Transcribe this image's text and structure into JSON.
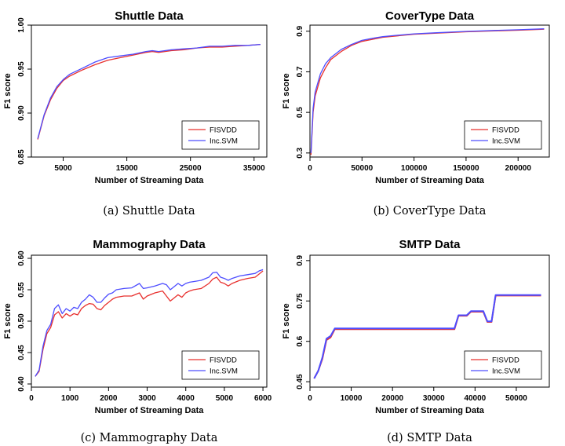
{
  "chart_data": [
    {
      "type": "line",
      "title": "Shuttle Data",
      "caption": "(a) Shuttle Data",
      "xlabel": "Number of Streaming Data",
      "ylabel": "F1 score",
      "xlim": [
        0,
        37000
      ],
      "ylim": [
        0.85,
        1.0
      ],
      "xticks": [
        5000,
        15000,
        25000,
        35000
      ],
      "yticks": [
        0.85,
        0.9,
        0.95,
        1.0
      ],
      "ytick_labels": [
        "0.85",
        "0.90",
        "0.95",
        "1.00"
      ],
      "legend": "bottom-right",
      "series": [
        {
          "name": "FISVDD",
          "color": "#e8302e",
          "x": [
            1000,
            2000,
            3000,
            4000,
            5000,
            6000,
            8000,
            10000,
            12000,
            14000,
            16000,
            18000,
            19000,
            20000,
            22000,
            24000,
            26000,
            28000,
            30000,
            32000,
            34000,
            36000
          ],
          "y": [
            0.87,
            0.897,
            0.915,
            0.928,
            0.937,
            0.942,
            0.949,
            0.955,
            0.96,
            0.963,
            0.966,
            0.969,
            0.97,
            0.969,
            0.971,
            0.972,
            0.974,
            0.975,
            0.975,
            0.976,
            0.977,
            0.978
          ]
        },
        {
          "name": "Inc.SVM",
          "color": "#4d4dff",
          "x": [
            1000,
            2000,
            3000,
            4000,
            5000,
            6000,
            8000,
            10000,
            12000,
            14000,
            16000,
            18000,
            19000,
            20000,
            22000,
            24000,
            26000,
            28000,
            30000,
            32000,
            34000,
            36000
          ],
          "y": [
            0.871,
            0.898,
            0.917,
            0.93,
            0.938,
            0.944,
            0.951,
            0.958,
            0.963,
            0.965,
            0.967,
            0.97,
            0.971,
            0.97,
            0.972,
            0.973,
            0.974,
            0.976,
            0.976,
            0.977,
            0.977,
            0.978
          ]
        }
      ]
    },
    {
      "type": "line",
      "title": "CoverType Data",
      "caption": "(b) CoverType Data",
      "xlabel": "Number of Streaming Data",
      "ylabel": "F1 score",
      "xlim": [
        0,
        230000
      ],
      "ylim": [
        0.28,
        0.93
      ],
      "xticks": [
        0,
        50000,
        100000,
        150000,
        200000
      ],
      "yticks": [
        0.3,
        0.5,
        0.7,
        0.9
      ],
      "ytick_labels": [
        "0.3",
        "0.5",
        "0.7",
        "0.9"
      ],
      "legend": "bottom-right",
      "series": [
        {
          "name": "FISVDD",
          "color": "#e8302e",
          "x": [
            1000,
            3000,
            5000,
            10000,
            15000,
            20000,
            30000,
            40000,
            50000,
            60000,
            70000,
            80000,
            100000,
            120000,
            150000,
            180000,
            200000,
            225000
          ],
          "y": [
            0.29,
            0.5,
            0.58,
            0.67,
            0.72,
            0.76,
            0.8,
            0.83,
            0.85,
            0.86,
            0.87,
            0.875,
            0.885,
            0.89,
            0.897,
            0.902,
            0.905,
            0.91
          ]
        },
        {
          "name": "Inc.SVM",
          "color": "#4d4dff",
          "x": [
            1000,
            3000,
            5000,
            10000,
            15000,
            20000,
            30000,
            40000,
            50000,
            60000,
            70000,
            80000,
            100000,
            120000,
            150000,
            180000,
            200000,
            225000
          ],
          "y": [
            0.3,
            0.52,
            0.6,
            0.69,
            0.74,
            0.77,
            0.81,
            0.835,
            0.855,
            0.865,
            0.873,
            0.878,
            0.887,
            0.892,
            0.899,
            0.904,
            0.907,
            0.912
          ]
        }
      ]
    },
    {
      "type": "line",
      "title": "Mammography Data",
      "caption": "(c) Mammography Data",
      "xlabel": "Number of Streaming Data",
      "ylabel": "F1 score",
      "xlim": [
        0,
        6100
      ],
      "ylim": [
        0.395,
        0.605
      ],
      "xticks": [
        0,
        1000,
        2000,
        3000,
        4000,
        5000,
        6000
      ],
      "yticks": [
        0.4,
        0.45,
        0.5,
        0.55,
        0.6
      ],
      "ytick_labels": [
        "0.40",
        "0.45",
        "0.50",
        "0.55",
        "0.60"
      ],
      "legend": "bottom-right",
      "series": [
        {
          "name": "FISVDD",
          "color": "#e8302e",
          "x": [
            100,
            200,
            300,
            400,
            500,
            600,
            700,
            800,
            900,
            1000,
            1100,
            1200,
            1300,
            1400,
            1500,
            1600,
            1700,
            1800,
            1900,
            2000,
            2100,
            2200,
            2400,
            2600,
            2800,
            2900,
            3000,
            3200,
            3400,
            3500,
            3600,
            3700,
            3800,
            3900,
            4000,
            4100,
            4200,
            4400,
            4600,
            4700,
            4800,
            4900,
            5000,
            5100,
            5200,
            5400,
            5600,
            5800,
            5900,
            6000
          ],
          "y": [
            0.412,
            0.42,
            0.455,
            0.48,
            0.49,
            0.51,
            0.515,
            0.505,
            0.512,
            0.508,
            0.512,
            0.51,
            0.52,
            0.525,
            0.528,
            0.527,
            0.52,
            0.518,
            0.525,
            0.53,
            0.535,
            0.538,
            0.54,
            0.54,
            0.545,
            0.535,
            0.54,
            0.545,
            0.548,
            0.54,
            0.532,
            0.537,
            0.542,
            0.538,
            0.545,
            0.548,
            0.55,
            0.552,
            0.56,
            0.567,
            0.57,
            0.562,
            0.56,
            0.556,
            0.56,
            0.565,
            0.568,
            0.57,
            0.575,
            0.58
          ]
        },
        {
          "name": "Inc.SVM",
          "color": "#4d4dff",
          "x": [
            100,
            200,
            300,
            400,
            500,
            600,
            700,
            800,
            900,
            1000,
            1100,
            1200,
            1300,
            1400,
            1500,
            1600,
            1700,
            1800,
            1900,
            2000,
            2100,
            2200,
            2400,
            2600,
            2800,
            2900,
            3000,
            3200,
            3400,
            3500,
            3600,
            3700,
            3800,
            3900,
            4000,
            4100,
            4200,
            4400,
            4600,
            4700,
            4800,
            4900,
            5000,
            5100,
            5200,
            5400,
            5600,
            5800,
            5900,
            6000
          ],
          "y": [
            0.412,
            0.422,
            0.46,
            0.485,
            0.495,
            0.52,
            0.526,
            0.512,
            0.52,
            0.516,
            0.522,
            0.52,
            0.53,
            0.535,
            0.542,
            0.538,
            0.53,
            0.53,
            0.537,
            0.543,
            0.545,
            0.55,
            0.552,
            0.553,
            0.56,
            0.552,
            0.553,
            0.556,
            0.56,
            0.558,
            0.55,
            0.555,
            0.56,
            0.556,
            0.56,
            0.562,
            0.563,
            0.565,
            0.57,
            0.577,
            0.578,
            0.57,
            0.568,
            0.565,
            0.568,
            0.572,
            0.574,
            0.576,
            0.58,
            0.582
          ]
        }
      ]
    },
    {
      "type": "line",
      "title": "SMTP Data",
      "caption": "(d) SMTP Data",
      "xlabel": "Number of Streaming Data",
      "ylabel": "F1 score",
      "xlim": [
        0,
        58000
      ],
      "ylim": [
        0.43,
        0.92
      ],
      "xticks": [
        0,
        10000,
        20000,
        30000,
        40000,
        50000
      ],
      "yticks": [
        0.45,
        0.6,
        0.75,
        0.9
      ],
      "ytick_labels": [
        "0.45",
        "0.6",
        "0.75",
        "0.9"
      ],
      "legend": "bottom-right",
      "series": [
        {
          "name": "FISVDD",
          "color": "#e8302e",
          "x": [
            1000,
            2000,
            3000,
            4000,
            5000,
            6000,
            8000,
            20000,
            35000,
            36000,
            38000,
            39000,
            42000,
            43000,
            44000,
            45000,
            46000,
            56000
          ],
          "y": [
            0.462,
            0.49,
            0.535,
            0.605,
            0.615,
            0.645,
            0.645,
            0.645,
            0.645,
            0.695,
            0.695,
            0.71,
            0.71,
            0.672,
            0.672,
            0.77,
            0.77,
            0.77
          ]
        },
        {
          "name": "Inc.SVM",
          "color": "#4d4dff",
          "x": [
            1000,
            2000,
            3000,
            4000,
            5000,
            6000,
            8000,
            20000,
            35000,
            36000,
            38000,
            39000,
            42000,
            43000,
            44000,
            45000,
            46000,
            56000
          ],
          "y": [
            0.462,
            0.49,
            0.54,
            0.61,
            0.62,
            0.648,
            0.648,
            0.648,
            0.648,
            0.697,
            0.697,
            0.712,
            0.712,
            0.674,
            0.674,
            0.772,
            0.772,
            0.772
          ]
        }
      ]
    }
  ]
}
